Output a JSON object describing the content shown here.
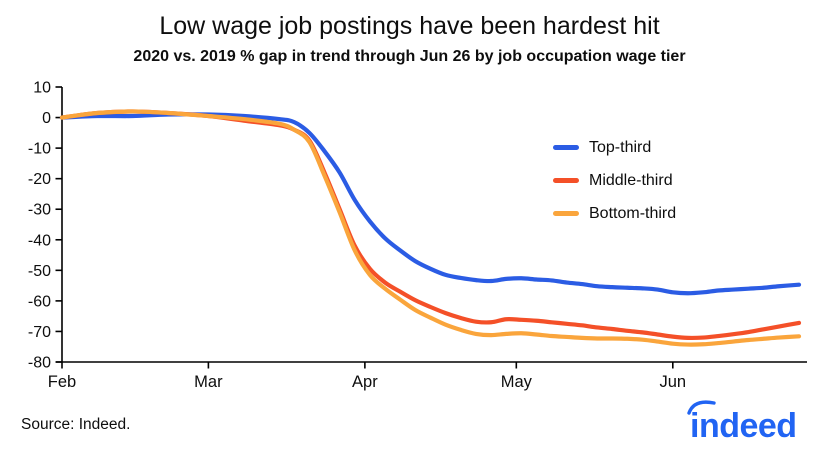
{
  "footer": {
    "source": "Source: Indeed.",
    "logo_text": "indeed"
  },
  "colors": {
    "top_third": "#2b5ce4",
    "middle_third": "#f45028",
    "bottom_third": "#faa53c",
    "logo_blue": "#2164f3",
    "axis": "#000000",
    "text": "#0e0e0e"
  },
  "chart_data": {
    "type": "line",
    "title": "Low wage job postings have been hardest hit",
    "subtitle": "2020 vs. 2019 % gap in trend through Jun 26 by job occupation wage tier",
    "xlabel": "",
    "ylabel": "",
    "x_unit": "days since Feb 1, 2020",
    "x_range_days": [
      0,
      146
    ],
    "ylim": [
      -80,
      10
    ],
    "grid": false,
    "legend_position": "upper-right-inside",
    "y_ticks": [
      10,
      0,
      -10,
      -20,
      -30,
      -40,
      -50,
      -60,
      -70,
      -80
    ],
    "x_ticks": [
      {
        "label": "Feb",
        "day": 0
      },
      {
        "label": "Mar",
        "day": 29
      },
      {
        "label": "Apr",
        "day": 60
      },
      {
        "label": "May",
        "day": 90
      },
      {
        "label": "Jun",
        "day": 121
      }
    ],
    "x_days": [
      0,
      7,
      14,
      21,
      29,
      36,
      43,
      46,
      49,
      52,
      55,
      58,
      61,
      64,
      67,
      70,
      73,
      76,
      79,
      82,
      85,
      88,
      91,
      94,
      97,
      100,
      103,
      106,
      109,
      112,
      115,
      118,
      121,
      124,
      127,
      130,
      133,
      136,
      139,
      142,
      146
    ],
    "series": [
      {
        "name": "Top-third",
        "color": "#2b5ce4",
        "values": [
          0,
          0.5,
          0.5,
          1,
          1,
          0.5,
          -0.5,
          -1.5,
          -5,
          -11,
          -18,
          -27,
          -34,
          -39.5,
          -43.5,
          -47,
          -49.5,
          -51.5,
          -52.5,
          -53.2,
          -53.5,
          -52.8,
          -52.6,
          -53,
          -53.3,
          -54,
          -54.5,
          -55.2,
          -55.5,
          -55.7,
          -55.9,
          -56.3,
          -57.2,
          -57.5,
          -57.2,
          -56.6,
          -56.3,
          -56,
          -55.7,
          -55.2,
          -54.7
        ]
      },
      {
        "name": "Middle-third",
        "color": "#f45028",
        "values": [
          0,
          1.5,
          2,
          1.5,
          0.5,
          -1,
          -2.5,
          -4,
          -7.5,
          -18,
          -30,
          -42,
          -49.5,
          -54,
          -57,
          -59.8,
          -62,
          -64,
          -65.6,
          -66.8,
          -67,
          -66,
          -66.2,
          -66.5,
          -67,
          -67.5,
          -68,
          -68.7,
          -69.2,
          -69.8,
          -70.3,
          -71,
          -71.7,
          -72.1,
          -72,
          -71.5,
          -70.9,
          -70.2,
          -69.3,
          -68.4,
          -67.2
        ]
      },
      {
        "name": "Bottom-third",
        "color": "#faa53c",
        "values": [
          0,
          1.5,
          2,
          1.5,
          0.5,
          -0.5,
          -2,
          -4,
          -8,
          -19,
          -31,
          -43.5,
          -51.5,
          -56,
          -59.6,
          -63,
          -65.5,
          -67.8,
          -69.5,
          -70.8,
          -71.2,
          -70.8,
          -70.6,
          -71,
          -71.5,
          -71.8,
          -72.1,
          -72.3,
          -72.3,
          -72.4,
          -72.7,
          -73.3,
          -74,
          -74.3,
          -74.2,
          -73.8,
          -73.3,
          -72.8,
          -72.4,
          -72,
          -71.6
        ]
      }
    ]
  }
}
